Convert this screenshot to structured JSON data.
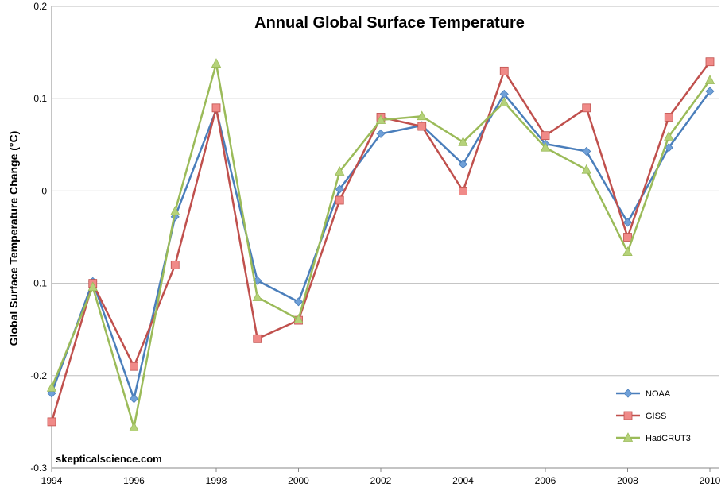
{
  "chart_data": {
    "type": "line",
    "title": "Annual Global Surface Temperature",
    "xlabel": "",
    "ylabel": "Global Surface Temperature Change (°C)",
    "xlim": [
      1994,
      2010
    ],
    "ylim": [
      -0.3,
      0.2
    ],
    "x": [
      1994,
      1995,
      1996,
      1997,
      1998,
      1999,
      2000,
      2001,
      2002,
      2003,
      2004,
      2005,
      2006,
      2007,
      2008,
      2009,
      2010
    ],
    "x_ticks": [
      "1994",
      "1996",
      "1998",
      "2000",
      "2002",
      "2004",
      "2006",
      "2008",
      "2010"
    ],
    "y_ticks": [
      "0.2",
      "0.1",
      "0",
      "-0.1",
      "-0.2",
      "-0.3"
    ],
    "grid": "horizontal",
    "legend_position": "bottom-right",
    "series": [
      {
        "name": "NOAA",
        "color": "#4a7ebb",
        "marker": "diamond",
        "marker_color": "#6fa0d8",
        "values": [
          -0.219,
          -0.098,
          -0.225,
          -0.028,
          0.088,
          -0.097,
          -0.12,
          0.002,
          0.062,
          0.071,
          0.029,
          0.105,
          0.051,
          0.043,
          -0.034,
          0.047,
          0.108
        ]
      },
      {
        "name": "GISS",
        "color": "#c0504d",
        "marker": "square",
        "marker_color": "#f08a88",
        "values": [
          -0.25,
          -0.1,
          -0.19,
          -0.08,
          0.09,
          -0.16,
          -0.14,
          -0.01,
          0.08,
          0.07,
          0.0,
          0.13,
          0.06,
          0.09,
          -0.05,
          0.08,
          0.14
        ]
      },
      {
        "name": "HadCRUT3",
        "color": "#9bbb59",
        "marker": "triangle",
        "marker_color": "#b5d27a",
        "values": [
          -0.213,
          -0.104,
          -0.256,
          -0.022,
          0.138,
          -0.115,
          -0.139,
          0.021,
          0.077,
          0.081,
          0.053,
          0.096,
          0.047,
          0.023,
          -0.066,
          0.059,
          0.12
        ]
      }
    ],
    "annotation": "skepticalscience.com"
  }
}
